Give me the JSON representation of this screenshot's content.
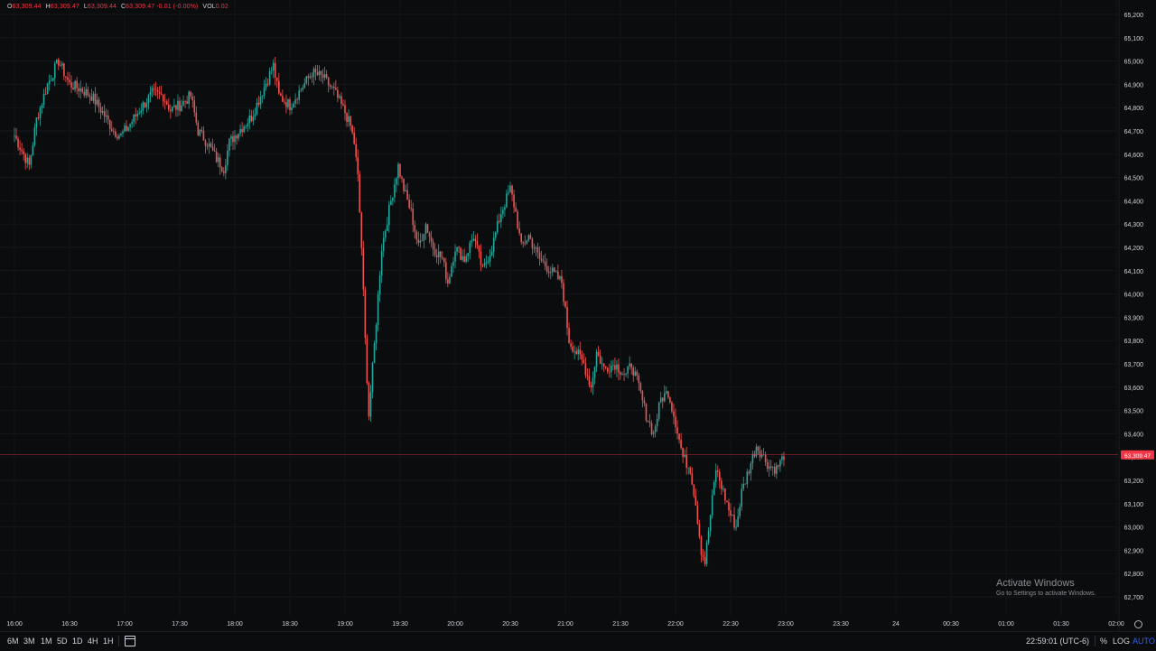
{
  "ohlc": {
    "o_key": "O",
    "o_val": "63,309.44",
    "h_key": "H",
    "h_val": "63,309.47",
    "l_key": "L",
    "l_val": "63,309.44",
    "c_key": "C",
    "c_val": "63,309.47 -0.01 (-0.00%)",
    "vol_key": "VOL",
    "vol_val": "0.02"
  },
  "colors": {
    "up": "#26a69a",
    "down": "#ef5350",
    "background": "#0b0c0e",
    "price_line": "#f23645"
  },
  "chart_data": {
    "type": "candlestick",
    "y_ticks": [
      "65,200",
      "65,100",
      "65,000",
      "64,900",
      "64,800",
      "64,700",
      "64,600",
      "64,500",
      "64,400",
      "64,300",
      "64,200",
      "64,100",
      "64,000",
      "63,900",
      "63,800",
      "63,700",
      "63,600",
      "63,500",
      "63,400",
      "63,300",
      "63,200",
      "63,100",
      "63,000",
      "62,900",
      "62,800",
      "62,700"
    ],
    "x_ticks": [
      "16:00",
      "16:30",
      "17:00",
      "17:30",
      "18:00",
      "18:30",
      "19:00",
      "19:30",
      "20:00",
      "20:30",
      "21:00",
      "21:30",
      "22:00",
      "22:30",
      "23:00",
      "23:30",
      "24",
      "00:30",
      "01:00",
      "01:30",
      "02:00"
    ],
    "ylim": [
      62660,
      65230
    ],
    "x_range": [
      "16:00",
      "02:00"
    ],
    "last_price": 63309.47,
    "last_price_label": "63,309.47",
    "close_path": [
      [
        "16:00",
        64680
      ],
      [
        "16:05",
        64600
      ],
      [
        "16:08",
        64550
      ],
      [
        "16:12",
        64750
      ],
      [
        "16:18",
        64900
      ],
      [
        "16:24",
        65000
      ],
      [
        "16:27",
        64950
      ],
      [
        "16:30",
        64900
      ],
      [
        "16:36",
        64880
      ],
      [
        "16:42",
        64850
      ],
      [
        "16:48",
        64780
      ],
      [
        "16:54",
        64700
      ],
      [
        "16:58",
        64680
      ],
      [
        "17:03",
        64730
      ],
      [
        "17:09",
        64800
      ],
      [
        "17:15",
        64860
      ],
      [
        "17:21",
        64850
      ],
      [
        "17:25",
        64790
      ],
      [
        "17:30",
        64810
      ],
      [
        "17:36",
        64850
      ],
      [
        "17:40",
        64700
      ],
      [
        "17:45",
        64650
      ],
      [
        "17:50",
        64580
      ],
      [
        "17:54",
        64540
      ],
      [
        "17:57",
        64650
      ],
      [
        "18:02",
        64700
      ],
      [
        "18:09",
        64760
      ],
      [
        "18:15",
        64870
      ],
      [
        "18:21",
        64980
      ],
      [
        "18:24",
        64850
      ],
      [
        "18:30",
        64810
      ],
      [
        "18:36",
        64880
      ],
      [
        "18:42",
        64950
      ],
      [
        "18:48",
        64930
      ],
      [
        "18:54",
        64870
      ],
      [
        "19:00",
        64780
      ],
      [
        "19:03",
        64720
      ],
      [
        "19:05",
        64650
      ],
      [
        "19:07",
        64500
      ],
      [
        "19:09",
        64200
      ],
      [
        "19:11",
        63800
      ],
      [
        "19:13",
        63480
      ],
      [
        "19:16",
        63780
      ],
      [
        "19:20",
        64200
      ],
      [
        "19:25",
        64400
      ],
      [
        "19:29",
        64550
      ],
      [
        "19:32",
        64450
      ],
      [
        "19:36",
        64350
      ],
      [
        "19:40",
        64200
      ],
      [
        "19:44",
        64300
      ],
      [
        "19:48",
        64200
      ],
      [
        "19:53",
        64150
      ],
      [
        "19:56",
        64050
      ],
      [
        "20:00",
        64200
      ],
      [
        "20:05",
        64150
      ],
      [
        "20:10",
        64250
      ],
      [
        "20:15",
        64100
      ],
      [
        "20:20",
        64200
      ],
      [
        "20:25",
        64350
      ],
      [
        "20:30",
        64450
      ],
      [
        "20:33",
        64350
      ],
      [
        "20:36",
        64200
      ],
      [
        "20:40",
        64250
      ],
      [
        "20:46",
        64150
      ],
      [
        "20:52",
        64100
      ],
      [
        "20:58",
        64050
      ],
      [
        "21:02",
        63800
      ],
      [
        "21:06",
        63750
      ],
      [
        "21:10",
        63700
      ],
      [
        "21:14",
        63600
      ],
      [
        "21:17",
        63750
      ],
      [
        "21:21",
        63680
      ],
      [
        "21:27",
        63700
      ],
      [
        "21:33",
        63650
      ],
      [
        "21:36",
        63700
      ],
      [
        "21:40",
        63600
      ],
      [
        "21:44",
        63480
      ],
      [
        "21:48",
        63400
      ],
      [
        "21:52",
        63550
      ],
      [
        "21:56",
        63580
      ],
      [
        "22:00",
        63450
      ],
      [
        "22:04",
        63300
      ],
      [
        "22:08",
        63250
      ],
      [
        "22:11",
        63100
      ],
      [
        "22:14",
        62900
      ],
      [
        "22:16",
        62850
      ],
      [
        "22:19",
        63050
      ],
      [
        "22:22",
        63250
      ],
      [
        "22:26",
        63150
      ],
      [
        "22:30",
        63050
      ],
      [
        "22:33",
        63000
      ],
      [
        "22:36",
        63150
      ],
      [
        "22:40",
        63250
      ],
      [
        "22:44",
        63350
      ],
      [
        "22:48",
        63300
      ],
      [
        "22:51",
        63260
      ],
      [
        "22:55",
        63250
      ],
      [
        "22:58",
        63290
      ],
      [
        "22:59",
        63309
      ]
    ]
  },
  "watermark": {
    "line1": "Activate Windows",
    "line2": "Go to Settings to activate Windows."
  },
  "bottom": {
    "timeframes": [
      "6M",
      "3M",
      "1M",
      "5D",
      "1D",
      "4H",
      "1H"
    ],
    "clock": "22:59:01 (UTC-6)",
    "percent": "%",
    "log": "LOG",
    "auto": "AUTO"
  }
}
